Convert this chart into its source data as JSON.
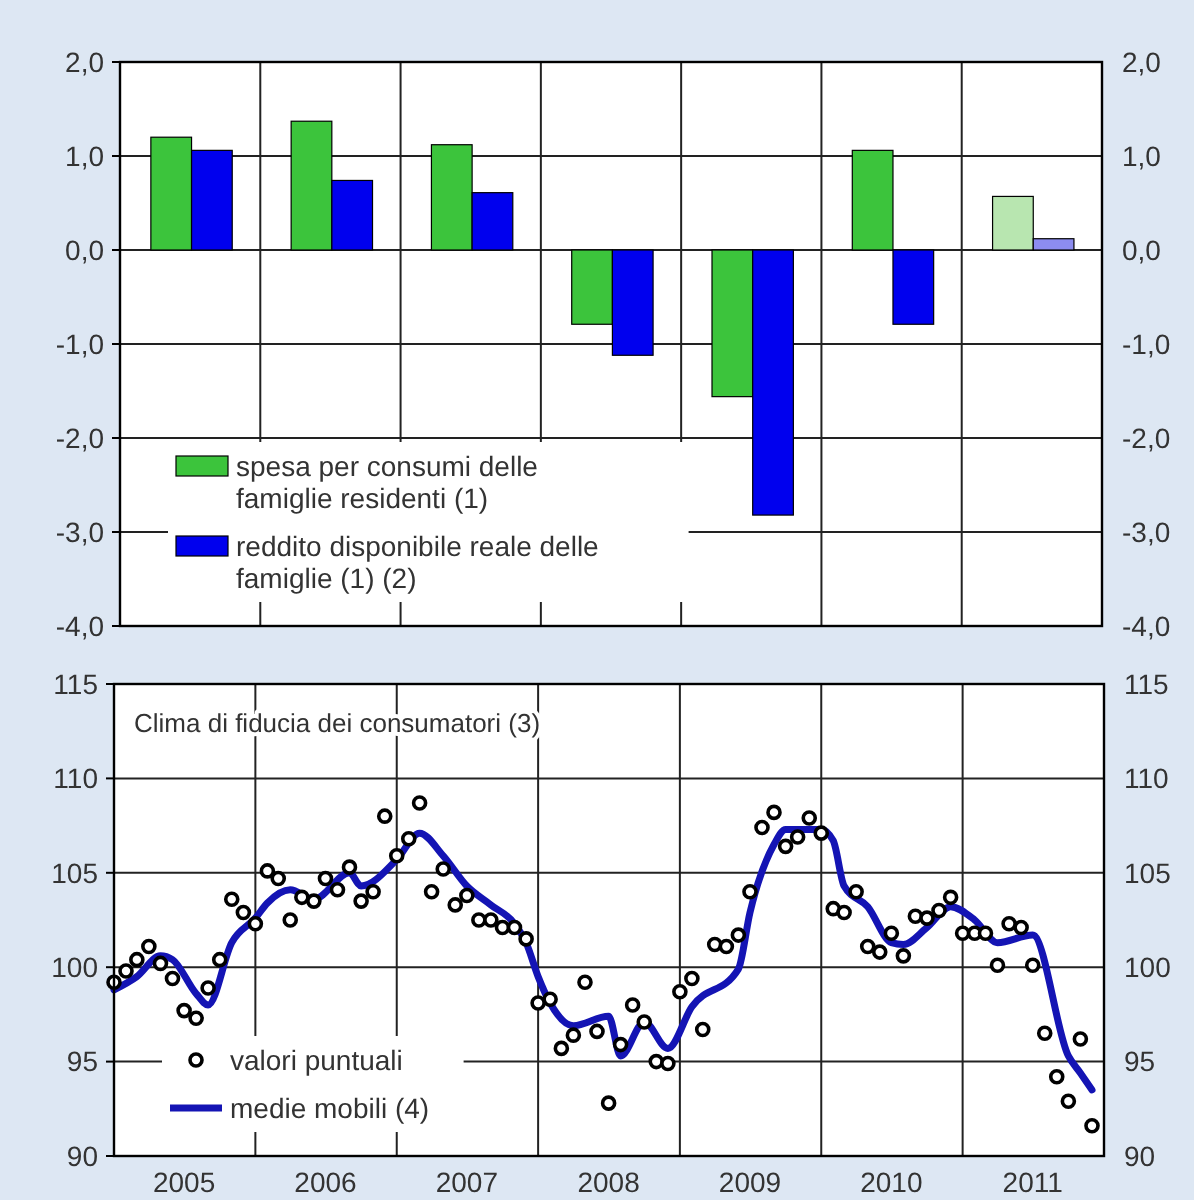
{
  "chart_data": [
    {
      "type": "bar",
      "categories": [
        null,
        null,
        null,
        null,
        null,
        null,
        null
      ],
      "series": [
        {
          "name": "spesa per consumi delle famiglie residenti (1)",
          "color": "#3cc43c",
          "colors": [
            "#3cc43c",
            "#3cc43c",
            "#3cc43c",
            "#3cc43c",
            "#3cc43c",
            "#3cc43c",
            "#b8e6b0"
          ],
          "values": [
            1.2,
            1.37,
            1.12,
            -0.79,
            -1.56,
            1.06,
            0.57
          ]
        },
        {
          "name": "reddito disponibile reale delle famiglie (1) (2)",
          "color": "#0000ee",
          "colors": [
            "#0000ee",
            "#0000ee",
            "#0000ee",
            "#0000ee",
            "#0000ee",
            "#0000ee",
            "#8c8cf0"
          ],
          "values": [
            1.06,
            0.74,
            0.61,
            -1.12,
            -2.82,
            -0.79,
            0.12
          ]
        }
      ],
      "ylim": [
        -4,
        2
      ],
      "yticks": [
        {
          "value": -4,
          "label": "-4,0"
        },
        {
          "value": -3,
          "label": "-3,0"
        },
        {
          "value": -2,
          "label": "-2,0"
        },
        {
          "value": -1,
          "label": "-1,0"
        },
        {
          "value": 0,
          "label": "0,0"
        },
        {
          "value": 1,
          "label": "1,0"
        },
        {
          "value": 2,
          "label": "2,0"
        }
      ],
      "y2lim": [
        -4,
        2
      ],
      "y2ticks": [
        {
          "value": -4,
          "label": "-4,0"
        },
        {
          "value": -3,
          "label": "-3,0"
        },
        {
          "value": -2,
          "label": "-2,0"
        },
        {
          "value": -1,
          "label": "-1,0"
        },
        {
          "value": 0,
          "label": "0,0"
        },
        {
          "value": 1,
          "label": "1,0"
        },
        {
          "value": 2,
          "label": "2,0"
        }
      ],
      "tick_labels": "y",
      "grid": true,
      "legend": "bottom left"
    },
    {
      "type": "line",
      "title": "Clima di fiducia dei consumatori (3)",
      "x": [
        "2005-01",
        "2005-02",
        "2005-03",
        "2005-04",
        "2005-05",
        "2005-06",
        "2005-07",
        "2005-08",
        "2005-09",
        "2005-10",
        "2005-11",
        "2005-12",
        "2006-01",
        "2006-02",
        "2006-03",
        "2006-04",
        "2006-05",
        "2006-06",
        "2006-07",
        "2006-08",
        "2006-09",
        "2006-10",
        "2006-11",
        "2006-12",
        "2007-01",
        "2007-02",
        "2007-03",
        "2007-04",
        "2007-05",
        "2007-06",
        "2007-07",
        "2007-08",
        "2007-09",
        "2007-10",
        "2007-11",
        "2007-12",
        "2008-01",
        "2008-02",
        "2008-03",
        "2008-04",
        "2008-05",
        "2008-06",
        "2008-07",
        "2008-08",
        "2008-09",
        "2008-10",
        "2008-11",
        "2008-12",
        "2009-01",
        "2009-02",
        "2009-03",
        "2009-04",
        "2009-05",
        "2009-06",
        "2009-07",
        "2009-08",
        "2009-09",
        "2009-10",
        "2009-11",
        "2009-12",
        "2010-01",
        "2010-02",
        "2010-03",
        "2010-04",
        "2010-05",
        "2010-06",
        "2010-07",
        "2010-08",
        "2010-09",
        "2010-10",
        "2010-11",
        "2010-12",
        "2011-01",
        "2011-02",
        "2011-03",
        "2011-04",
        "2011-05",
        "2011-06",
        "2011-07",
        "2011-08",
        "2011-09",
        "2011-10",
        "2011-11",
        "2011-12"
      ],
      "series": [
        {
          "name": "valori puntuali",
          "type": "scatter",
          "marker": "circle",
          "color": "#000000",
          "values": [
            99.2,
            99.8,
            100.4,
            101.1,
            100.2,
            99.4,
            97.7,
            97.3,
            98.9,
            100.4,
            103.6,
            102.9,
            102.3,
            105.1,
            104.7,
            102.5,
            103.7,
            103.5,
            104.7,
            104.1,
            105.3,
            103.5,
            104.0,
            108.0,
            105.9,
            106.8,
            108.7,
            104.0,
            105.2,
            103.3,
            103.8,
            102.5,
            102.5,
            102.1,
            102.1,
            101.5,
            98.1,
            98.3,
            95.7,
            96.4,
            99.2,
            96.6,
            92.8,
            95.9,
            98.0,
            97.1,
            95.0,
            94.9,
            98.7,
            99.4,
            96.7,
            101.2,
            101.1,
            101.7,
            104.0,
            107.4,
            108.2,
            106.4,
            106.9,
            107.9,
            107.1,
            103.1,
            102.9,
            104.0,
            101.1,
            100.8,
            101.8,
            100.6,
            102.7,
            102.6,
            103.0,
            103.7,
            101.8,
            101.8,
            101.8,
            100.1,
            102.3,
            102.1,
            100.1,
            96.5,
            94.2,
            92.9,
            96.2,
            91.6
          ]
        },
        {
          "name": "medie mobili (4)",
          "type": "line",
          "color": "#1414b4",
          "x": [
            "2005-01",
            "2005-03",
            "2005-05",
            "2005-06",
            "2005-08",
            "2005-09",
            "2005-11",
            "2006-01",
            "2006-02",
            "2006-04",
            "2006-06",
            "2006-09",
            "2006-10",
            "2007-01",
            "2007-03",
            "2007-05",
            "2007-07",
            "2007-09",
            "2007-11",
            "2007-12",
            "2008-01",
            "2008-02",
            "2008-04",
            "2008-07",
            "2008-08",
            "2008-10",
            "2008-12",
            "2009-02",
            "2009-06",
            "2009-07",
            "2009-09",
            "2009-10",
            "2010-01",
            "2010-02",
            "2010-03",
            "2010-05",
            "2010-07",
            "2010-08",
            "2010-10",
            "2010-12",
            "2011-02",
            "2011-04",
            "2011-07",
            "2011-10",
            "2011-11",
            "2011-12"
          ],
          "values": [
            98.8,
            99.5,
            100.6,
            100.4,
            98.6,
            98.0,
            101.3,
            102.6,
            103.4,
            104.1,
            103.6,
            105.0,
            104.3,
            105.7,
            107.1,
            105.9,
            104.3,
            103.3,
            102.3,
            101.3,
            99.5,
            98.1,
            96.9,
            97.4,
            95.3,
            97.1,
            95.7,
            97.9,
            99.9,
            102.9,
            106.5,
            107.3,
            107.3,
            106.7,
            104.3,
            103.2,
            101.3,
            101.2,
            102.1,
            103.2,
            102.5,
            101.3,
            101.7,
            95.3,
            94.4,
            93.5
          ]
        }
      ],
      "xlim": [
        "2005-01",
        "2012-01"
      ],
      "xticks": [
        {
          "value": "2005-01",
          "label": null
        },
        {
          "value": "2005-07",
          "label": "2005"
        },
        {
          "value": "2006-01",
          "label": null
        },
        {
          "value": "2006-07",
          "label": "2006"
        },
        {
          "value": "2007-01",
          "label": null
        },
        {
          "value": "2007-07",
          "label": "2007"
        },
        {
          "value": "2008-01",
          "label": null
        },
        {
          "value": "2008-07",
          "label": "2008"
        },
        {
          "value": "2009-01",
          "label": null
        },
        {
          "value": "2009-07",
          "label": "2009"
        },
        {
          "value": "2010-01",
          "label": null
        },
        {
          "value": "2010-07",
          "label": "2010"
        },
        {
          "value": "2011-01",
          "label": null
        },
        {
          "value": "2011-07",
          "label": "2011"
        },
        {
          "value": "2012-01",
          "label": null
        }
      ],
      "ylim": [
        90,
        115
      ],
      "yticks": [
        90,
        95,
        100,
        105,
        110,
        115
      ],
      "y2lim": [
        90,
        115
      ],
      "y2ticks": [
        90,
        95,
        100,
        105,
        110,
        115
      ],
      "grid": true,
      "legend": "bottom left"
    }
  ]
}
